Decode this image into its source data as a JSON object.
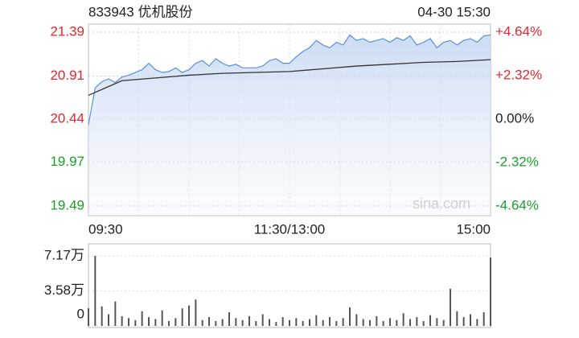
{
  "chart_data": [
    {
      "type": "line",
      "title": "833943 优机股份",
      "timestamp": "04-30 15:30",
      "watermark": "sina.com",
      "x": [
        0,
        4,
        8,
        12,
        16,
        20,
        24,
        28,
        32,
        36,
        40,
        44,
        48,
        52,
        56,
        60,
        64,
        68,
        72,
        76,
        80,
        84,
        88,
        92,
        96,
        100,
        104,
        108,
        112,
        116,
        120,
        124,
        128,
        132,
        136,
        140,
        144,
        148,
        152,
        156,
        160,
        164,
        168,
        172,
        176,
        180,
        184,
        188,
        192,
        196,
        200,
        204,
        208,
        212,
        216,
        220,
        224,
        228,
        232,
        236,
        240
      ],
      "xlim": [
        0,
        240
      ],
      "xticks": [
        {
          "value": 0,
          "label": "09:30"
        },
        {
          "value": 120,
          "label": "11:30/13:00"
        },
        {
          "value": 240,
          "label": "15:00"
        }
      ],
      "ylim": [
        19.49,
        21.39
      ],
      "yticks": [
        21.39,
        20.91,
        20.44,
        19.97,
        19.49
      ],
      "y2lim": [
        -4.64,
        4.64
      ],
      "y2ticks": [
        {
          "value": 4.64,
          "label": "+4.64%"
        },
        {
          "value": 2.32,
          "label": "+2.32%"
        },
        {
          "value": 0,
          "label": "0.00%"
        },
        {
          "value": -2.32,
          "label": "-2.32%"
        },
        {
          "value": -4.64,
          "label": "-4.64%"
        }
      ],
      "up_color": "#e0282f",
      "down_color": "#1a9f2a",
      "flat_color": "#222222",
      "grid": true,
      "series": [
        {
          "name": "price",
          "color": "#5b8fdc",
          "fill": "#d6e4f7",
          "values": [
            20.38,
            20.78,
            20.85,
            20.88,
            20.84,
            20.9,
            20.92,
            20.95,
            20.98,
            21.05,
            20.98,
            20.95,
            20.96,
            21.0,
            20.95,
            20.98,
            21.05,
            21.08,
            21.02,
            21.1,
            21.05,
            21.02,
            21.04,
            21.0,
            21.0,
            21.0,
            21.02,
            21.08,
            21.1,
            21.05,
            21.05,
            21.12,
            21.18,
            21.22,
            21.3,
            21.25,
            21.22,
            21.28,
            21.25,
            21.36,
            21.3,
            21.32,
            21.28,
            21.3,
            21.32,
            21.28,
            21.33,
            21.3,
            21.35,
            21.25,
            21.28,
            21.32,
            21.22,
            21.28,
            21.3,
            21.25,
            21.3,
            21.32,
            21.28,
            21.35,
            21.36
          ]
        },
        {
          "name": "average",
          "color": "#333333",
          "x": [
            0,
            20,
            40,
            60,
            80,
            100,
            120,
            140,
            160,
            180,
            200,
            220,
            240
          ],
          "values": [
            20.7,
            20.86,
            20.89,
            20.92,
            20.94,
            20.95,
            20.96,
            20.99,
            21.02,
            21.04,
            21.06,
            21.07,
            21.09
          ]
        }
      ]
    },
    {
      "type": "bar",
      "x": [
        0,
        4,
        8,
        12,
        16,
        20,
        24,
        28,
        32,
        36,
        40,
        44,
        48,
        52,
        56,
        60,
        64,
        68,
        72,
        76,
        80,
        84,
        88,
        92,
        96,
        100,
        104,
        108,
        112,
        116,
        120,
        124,
        128,
        132,
        136,
        140,
        144,
        148,
        152,
        156,
        160,
        164,
        168,
        172,
        176,
        180,
        184,
        188,
        192,
        196,
        200,
        204,
        208,
        212,
        216,
        220,
        224,
        228,
        232,
        236,
        240
      ],
      "xlim": [
        0,
        240
      ],
      "ylim": [
        0,
        7.17
      ],
      "yticks": [
        {
          "value": 7.17,
          "label": "7.17万"
        },
        {
          "value": 3.58,
          "label": "3.58万"
        },
        0
      ],
      "color": "#555555",
      "values": [
        1.8,
        7.17,
        2.0,
        1.2,
        2.5,
        1.0,
        0.8,
        0.6,
        1.5,
        0.9,
        0.7,
        1.6,
        0.5,
        0.8,
        1.8,
        2.1,
        2.7,
        0.6,
        0.9,
        0.5,
        0.7,
        1.4,
        0.8,
        0.6,
        1.0,
        0.5,
        1.2,
        0.7,
        0.4,
        0.9,
        0.6,
        0.8,
        0.5,
        0.7,
        1.1,
        0.6,
        0.9,
        0.5,
        0.8,
        1.9,
        1.2,
        0.7,
        0.6,
        1.0,
        0.5,
        0.8,
        0.6,
        1.3,
        0.7,
        0.9,
        0.5,
        1.1,
        0.8,
        0.6,
        3.8,
        1.5,
        0.9,
        1.2,
        0.7,
        1.4,
        7.0
      ]
    }
  ]
}
